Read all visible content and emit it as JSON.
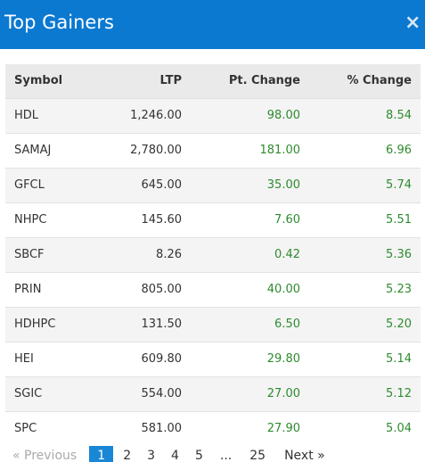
{
  "header": {
    "title": "Top Gainers",
    "close_glyph": "×",
    "close_icon": "close-icon"
  },
  "table": {
    "columns": [
      "Symbol",
      "LTP",
      "Pt. Change",
      "% Change"
    ],
    "rows": [
      [
        "HDL",
        "1,246.00",
        "98.00",
        "8.54"
      ],
      [
        "SAMAJ",
        "2,780.00",
        "181.00",
        "6.96"
      ],
      [
        "GFCL",
        "645.00",
        "35.00",
        "5.74"
      ],
      [
        "NHPC",
        "145.60",
        "7.60",
        "5.51"
      ],
      [
        "SBCF",
        "8.26",
        "0.42",
        "5.36"
      ],
      [
        "PRIN",
        "805.00",
        "40.00",
        "5.23"
      ],
      [
        "HDHPC",
        "131.50",
        "6.50",
        "5.20"
      ],
      [
        "HEI",
        "609.80",
        "29.80",
        "5.14"
      ],
      [
        "SGIC",
        "554.00",
        "27.00",
        "5.12"
      ],
      [
        "SPC",
        "581.00",
        "27.90",
        "5.04"
      ]
    ]
  },
  "colors": {
    "header_bg": "#0b79d0",
    "positive": "#2e8b2e",
    "active_page": "#1a86d6"
  },
  "pagination": {
    "previous": "«  Previous",
    "pages": [
      "1",
      "2",
      "3",
      "4",
      "5"
    ],
    "ellipsis": "...",
    "last": "25",
    "next": "Next  »",
    "active": "1"
  }
}
